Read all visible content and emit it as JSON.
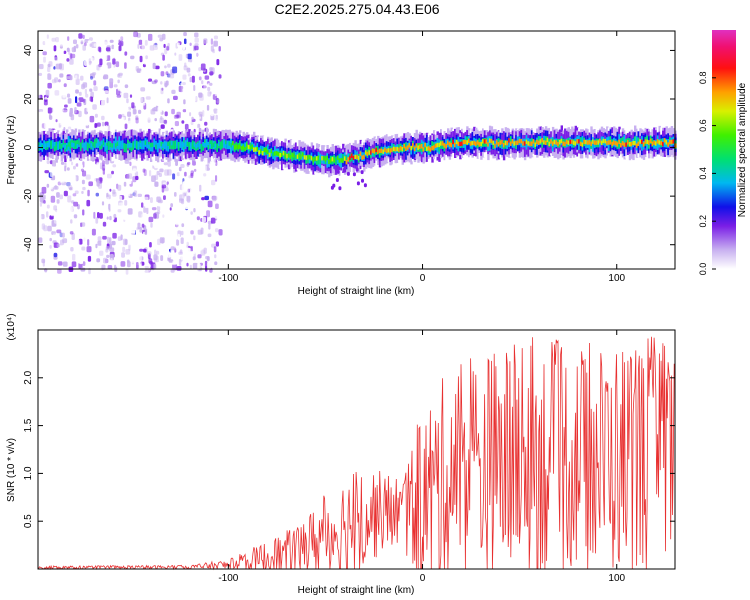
{
  "title": "C2E2.2025.275.04.43.E06",
  "colorbar": {
    "label": "Normalized spectral amplitude",
    "ticks": [
      "0.0",
      "0.2",
      "0.4",
      "0.6",
      "0.8"
    ],
    "range": [
      0,
      1
    ],
    "colormap": "rainbow-white-to-magenta-red"
  },
  "chart_data": [
    {
      "type": "heatmap",
      "title": "",
      "xlabel": "Height of straight line (km)",
      "ylabel": "Frequency (Hz)",
      "xlim": [
        -198,
        130
      ],
      "ylim": [
        -50,
        48
      ],
      "xticks": [
        "-100",
        "0",
        "100"
      ],
      "yticks": [
        "-40",
        "-20",
        "0",
        "20",
        "40"
      ],
      "ridge": {
        "x": [
          -195,
          -150,
          -120,
          -100,
          -90,
          -80,
          -70,
          -60,
          -50,
          -40,
          -30,
          -20,
          -10,
          0,
          10,
          20,
          40,
          60,
          80,
          100,
          130
        ],
        "freq_hz": [
          1,
          1,
          1,
          1,
          0,
          -2,
          -3,
          -4,
          -5,
          -5,
          -3,
          -1,
          0,
          0,
          1,
          2,
          2,
          2,
          2,
          2,
          2
        ]
      },
      "noise_region_x": [
        -198,
        -105
      ]
    },
    {
      "type": "line",
      "title": "",
      "xlabel": "Height of straight line (km)",
      "ylabel": "SNR (10 * v/v)",
      "y_scale_label": "(x10⁴)",
      "xlim": [
        -198,
        130
      ],
      "ylim": [
        0,
        2.5
      ],
      "xticks": [
        "-100",
        "0",
        "100"
      ],
      "yticks": [
        "0.5",
        "1.0",
        "1.5",
        "2.0"
      ],
      "series": [
        {
          "color": "#e83030",
          "envelope": {
            "x": [
              -198,
              -120,
              -100,
              -90,
              -80,
              -70,
              -60,
              -50,
              -40,
              -30,
              -20,
              -10,
              0,
              10,
              20,
              40,
              60,
              80,
              100,
              130
            ],
            "mean": [
              0.01,
              0.02,
              0.04,
              0.07,
              0.11,
              0.15,
              0.25,
              0.35,
              0.45,
              0.55,
              0.6,
              0.6,
              0.7,
              0.9,
              1.05,
              1.1,
              1.15,
              1.15,
              1.15,
              1.15
            ],
            "max": [
              0.03,
              0.04,
              0.1,
              0.2,
              0.3,
              0.4,
              0.55,
              0.8,
              1.0,
              1.15,
              1.0,
              1.0,
              1.7,
              2.0,
              2.2,
              2.35,
              2.45,
              2.35,
              2.4,
              2.5
            ]
          }
        }
      ]
    }
  ]
}
